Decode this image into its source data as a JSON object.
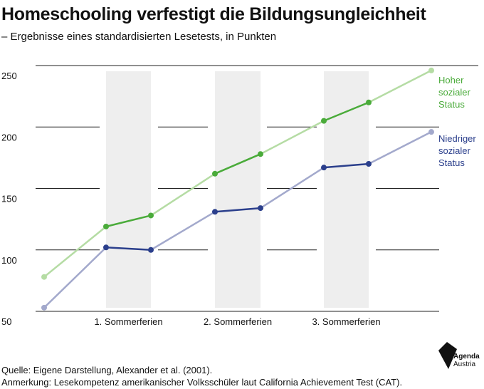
{
  "title": "Homeschooling verfestigt die Bildungsungleichheit",
  "subtitle": "– Ergebnisse eines standardisierten Lesetests, in Punkten",
  "source": "Quelle: Eigene Darstellung, Alexander et al. (2001).",
  "note": "Anmerkung: Lesekompetenz amerikanischer Volksschüler laut California Achievement Test (CAT).",
  "logo": {
    "line1": "Agenda",
    "line2": "Austria"
  },
  "colors": {
    "high_dark": "#4aab3a",
    "high_light": "#b5dca4",
    "low_dark": "#2b3f8c",
    "low_light": "#a3a9cc",
    "shade": "#eeeeee",
    "grid": "#222222"
  },
  "chart_data": {
    "type": "line",
    "title": "Homeschooling verfestigt die Bildungsungleichheit",
    "subtitle": "– Ergebnisse eines standardisierten Lesetests, in Punkten",
    "ylim": [
      50,
      250
    ],
    "yticks": [
      250,
      200,
      150,
      100,
      50
    ],
    "shaded_periods": [
      "1. Sommerferien",
      "2. Sommerferien",
      "3. Sommerferien"
    ],
    "x": [
      0,
      1,
      2,
      3,
      4,
      5,
      6,
      7,
      8
    ],
    "series": [
      {
        "name": "Hoher sozialer Status",
        "label_lines": [
          "Hoher",
          "sozialer",
          "Status"
        ],
        "values": [
          78,
          119,
          128,
          162,
          178,
          205,
          220,
          246
        ],
        "x": [
          0,
          1,
          2,
          3,
          4,
          5,
          6,
          8
        ]
      },
      {
        "name": "Niedriger sozialer Status",
        "label_lines": [
          "Niedriger",
          "sozialer",
          "Status"
        ],
        "values": [
          53,
          102,
          100,
          131,
          134,
          167,
          170,
          196
        ],
        "x": [
          0,
          1,
          2,
          3,
          4,
          5,
          6,
          8
        ]
      }
    ]
  }
}
